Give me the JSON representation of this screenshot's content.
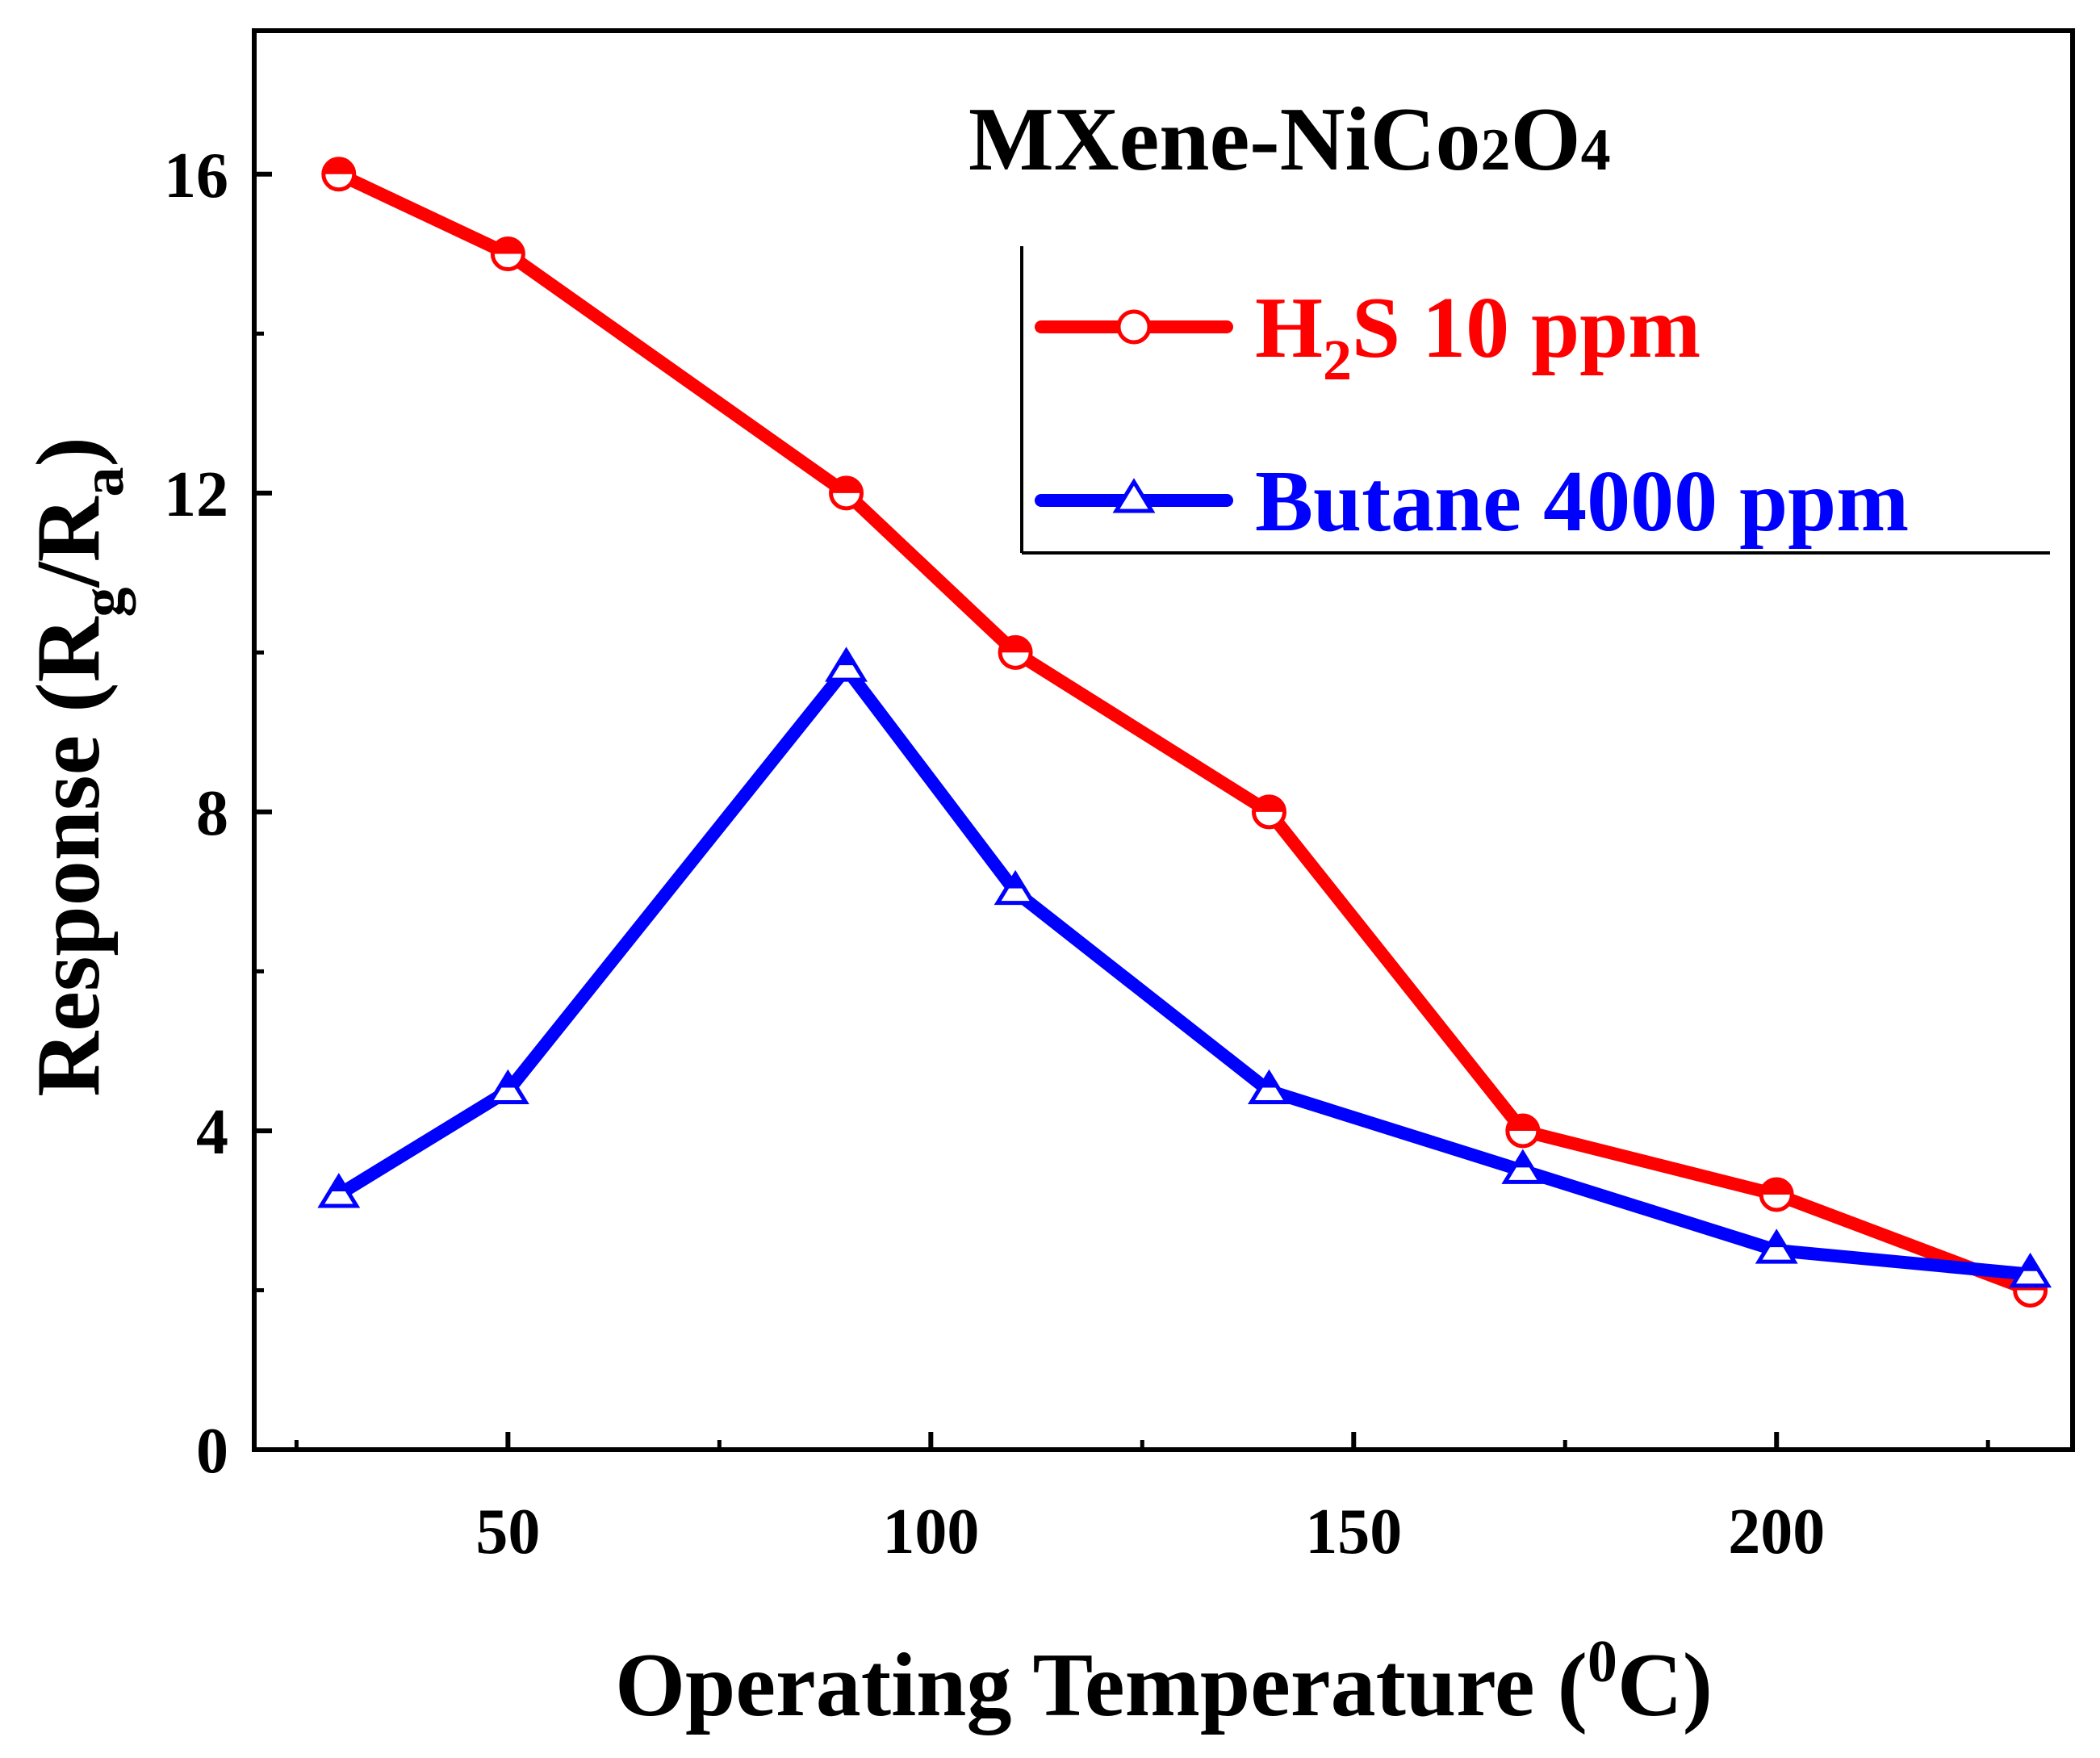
{
  "chart_data": {
    "type": "line",
    "title": "MXene-NiCo2O4",
    "title_parts": {
      "main": "MXene-NiCo",
      "sub1": "2",
      "mid": "O",
      "sub2": "4"
    },
    "xlabel": "Operating Temperature (0C)",
    "xlabel_parts": {
      "main": "Operating Temperature (",
      "sup": "0",
      "end": "C)"
    },
    "ylabel": "Response (Rg/Ra)",
    "ylabel_parts": {
      "main": "Response (R",
      "sub1": "g",
      "mid": "/R",
      "sub2": "a",
      "end": ")"
    },
    "xlim": [
      20,
      235
    ],
    "ylim": [
      0,
      17.8
    ],
    "x_ticks": [
      50,
      100,
      150,
      200
    ],
    "x_tick_labels": [
      "50",
      "100",
      "150",
      "200"
    ],
    "y_ticks": [
      0,
      4,
      8,
      12,
      16
    ],
    "y_tick_labels": [
      "0",
      "4",
      "8",
      "12",
      "16"
    ],
    "grid": false,
    "legend_position": "top-right",
    "series": [
      {
        "name": "H2S 10 ppm",
        "label_parts": {
          "a": "H",
          "sub": "2",
          "b": "S 10 ppm"
        },
        "color": "#ff0000",
        "marker": "circle",
        "x": [
          30,
          50,
          90,
          110,
          140,
          170,
          200,
          230
        ],
        "values": [
          16.0,
          15.0,
          12.0,
          10.0,
          8.0,
          4.0,
          3.2,
          2.0
        ]
      },
      {
        "name": "Butane 4000 ppm",
        "label_parts": {
          "a": "Butane 4000 ppm",
          "sub": "",
          "b": ""
        },
        "color": "#0000ff",
        "marker": "triangle",
        "x": [
          30,
          50,
          90,
          110,
          140,
          170,
          200,
          230
        ],
        "values": [
          3.2,
          4.5,
          9.8,
          7.0,
          4.5,
          3.5,
          2.5,
          2.2
        ]
      }
    ]
  }
}
